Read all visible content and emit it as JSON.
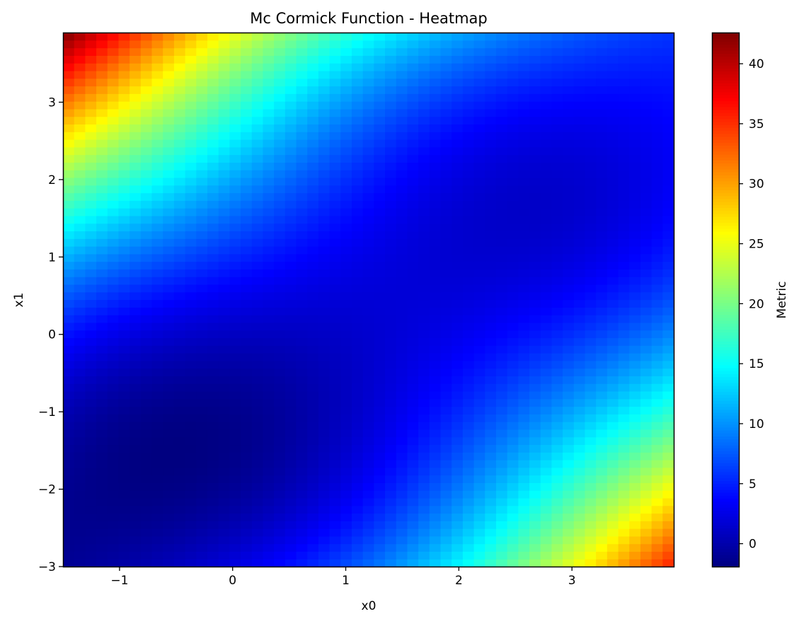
{
  "chart_data": {
    "type": "heatmap",
    "title": "Mc Cormick Function - Heatmap",
    "xlabel": "x0",
    "ylabel": "x1",
    "colorbar_label": "Metric",
    "colormap": "jet",
    "function": "McCormick",
    "xlim": [
      -1.5,
      3.9
    ],
    "ylim": [
      -3.0,
      3.9
    ],
    "grid_resolution": [
      55,
      70
    ],
    "value_range": [
      -1.91,
      42.6
    ],
    "x_ticks": [
      -1,
      0,
      1,
      2,
      3
    ],
    "x_tick_labels": [
      "−1",
      "0",
      "1",
      "2",
      "3"
    ],
    "y_ticks": [
      -3,
      -2,
      -1,
      0,
      1,
      2,
      3
    ],
    "y_tick_labels": [
      "−3",
      "−2",
      "−1",
      "0",
      "1",
      "2",
      "3"
    ],
    "colorbar_ticks": [
      0,
      5,
      10,
      15,
      20,
      25,
      30,
      35,
      40
    ],
    "colorbar_tick_labels": [
      "0",
      "5",
      "10",
      "15",
      "20",
      "25",
      "30",
      "35",
      "40"
    ],
    "grid": false
  }
}
